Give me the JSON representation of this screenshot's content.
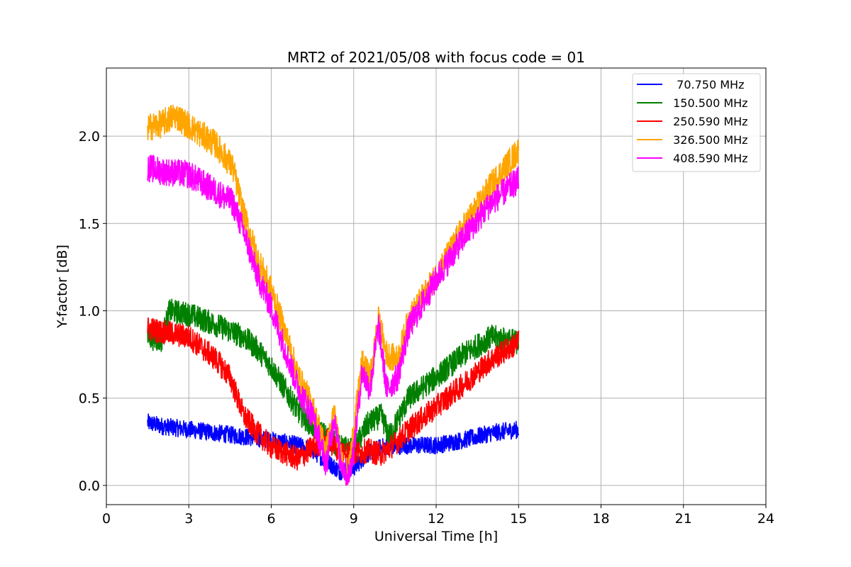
{
  "chart_data": {
    "type": "line",
    "title": "MRT2 of 2021/05/08 with focus code = 01",
    "xlabel": "Universal Time [h]",
    "ylabel": "Y-factor [dB]",
    "xlim": [
      0,
      24
    ],
    "ylim": [
      -0.11,
      2.39
    ],
    "xticks": [
      0,
      3,
      6,
      9,
      12,
      15,
      18,
      21,
      24
    ],
    "xtick_labels": [
      "0",
      "3",
      "6",
      "9",
      "12",
      "15",
      "18",
      "21",
      "24"
    ],
    "yticks": [
      0.0,
      0.5,
      1.0,
      1.5,
      2.0
    ],
    "ytick_labels": [
      "0.0",
      "0.5",
      "1.0",
      "1.5",
      "2.0"
    ],
    "grid": true,
    "legend_position": "top-right",
    "series": [
      {
        "name": "  70.750 MHz",
        "color": "#0000ff",
        "noise": 0.05,
        "x": [
          1.5,
          2,
          3,
          4,
          5,
          6,
          7,
          7.5,
          8,
          8.5,
          9,
          9.5,
          10,
          11,
          12,
          13,
          14,
          15
        ],
        "y": [
          0.36,
          0.34,
          0.32,
          0.3,
          0.28,
          0.26,
          0.23,
          0.2,
          0.14,
          0.08,
          0.1,
          0.18,
          0.22,
          0.23,
          0.23,
          0.26,
          0.3,
          0.32
        ]
      },
      {
        "name": " 150.500 MHz",
        "color": "#008000",
        "noise": 0.07,
        "x": [
          1.5,
          2,
          2.3,
          3,
          4,
          5,
          5.5,
          6,
          6.5,
          7,
          7.5,
          8,
          8.5,
          9,
          9.5,
          10,
          10.3,
          11,
          12,
          13,
          14,
          15
        ],
        "y": [
          0.85,
          0.83,
          1.0,
          0.98,
          0.92,
          0.85,
          0.78,
          0.68,
          0.55,
          0.42,
          0.34,
          0.28,
          0.22,
          0.2,
          0.35,
          0.4,
          0.28,
          0.5,
          0.62,
          0.75,
          0.85,
          0.82
        ]
      },
      {
        "name": " 250.590 MHz",
        "color": "#ff0000",
        "noise": 0.07,
        "x": [
          1.5,
          2,
          3,
          4,
          4.5,
          5,
          5.5,
          6,
          7,
          7.5,
          8,
          8.5,
          9,
          9.5,
          10,
          10.5,
          11,
          12,
          13,
          14,
          15
        ],
        "y": [
          0.9,
          0.88,
          0.85,
          0.72,
          0.62,
          0.4,
          0.3,
          0.22,
          0.15,
          0.22,
          0.26,
          0.2,
          0.18,
          0.2,
          0.18,
          0.24,
          0.32,
          0.45,
          0.58,
          0.72,
          0.82
        ]
      },
      {
        "name": " 326.500 MHz",
        "color": "#ffa500",
        "noise": 0.08,
        "x": [
          1.5,
          2,
          2.5,
          3,
          4,
          4.6,
          5,
          5.5,
          6,
          6.5,
          7,
          7.5,
          8,
          8.3,
          8.5,
          8.8,
          9,
          9.3,
          9.6,
          9.9,
          10.2,
          10.6,
          11,
          12,
          13,
          14,
          15
        ],
        "y": [
          2.05,
          2.07,
          2.12,
          2.06,
          1.95,
          1.82,
          1.55,
          1.3,
          1.12,
          0.88,
          0.62,
          0.45,
          0.2,
          0.42,
          0.18,
          0.06,
          0.32,
          0.7,
          0.62,
          0.95,
          0.75,
          0.72,
          0.95,
          1.2,
          1.48,
          1.72,
          1.92
        ]
      },
      {
        "name": " 408.590 MHz",
        "color": "#ff00ff",
        "noise": 0.08,
        "x": [
          1.5,
          2,
          3,
          4,
          4.6,
          5,
          5.5,
          6,
          6.5,
          7,
          7.5,
          8,
          8.3,
          8.5,
          8.8,
          9,
          9.3,
          9.6,
          9.9,
          10.2,
          10.6,
          11,
          12,
          13,
          14,
          15
        ],
        "y": [
          1.82,
          1.8,
          1.78,
          1.68,
          1.62,
          1.45,
          1.2,
          1.02,
          0.78,
          0.55,
          0.4,
          0.12,
          0.4,
          0.15,
          0.04,
          0.2,
          0.65,
          0.55,
          0.92,
          0.55,
          0.62,
          0.9,
          1.18,
          1.42,
          1.62,
          1.75
        ]
      }
    ]
  }
}
